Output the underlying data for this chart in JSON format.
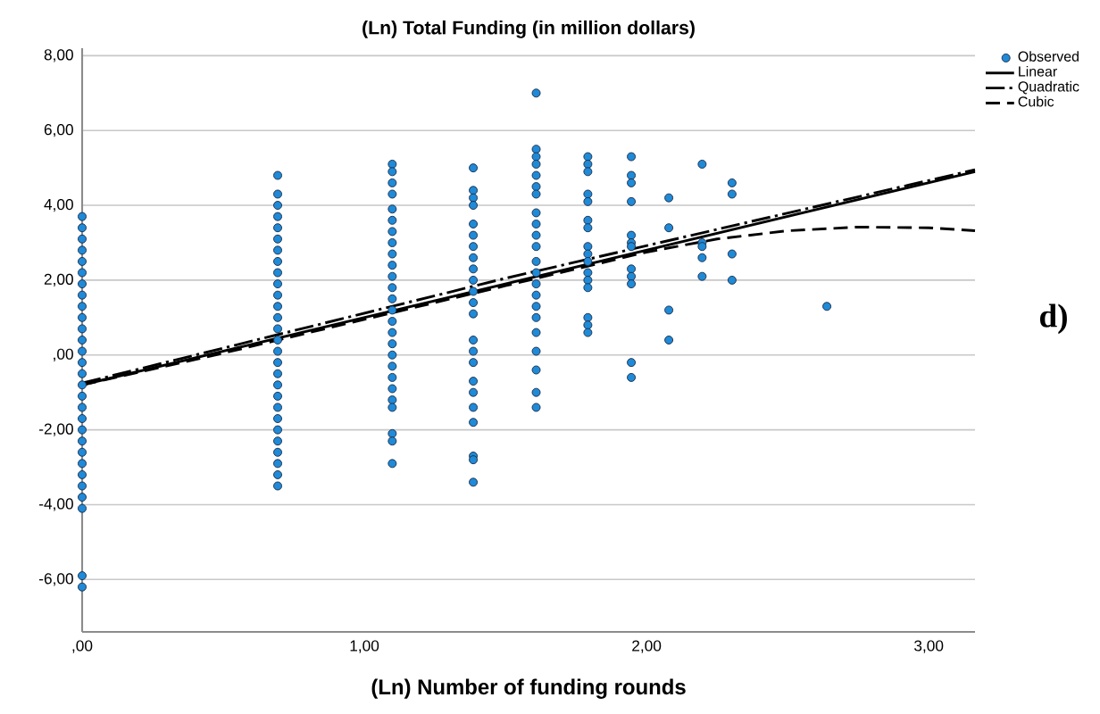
{
  "chart_data": {
    "type": "scatter",
    "title": "(Ln) Total Funding (in million dollars)",
    "xlabel": "(Ln) Number of funding rounds",
    "xlim": [
      0,
      3.164
    ],
    "ylim": [
      -7.4,
      8.2
    ],
    "xticks": [
      {
        "value": 0,
        "label": ",00"
      },
      {
        "value": 1,
        "label": "1,00"
      },
      {
        "value": 2,
        "label": "2,00"
      },
      {
        "value": 3,
        "label": "3,00"
      }
    ],
    "yticks": [
      {
        "value": -6,
        "label": "-6,00"
      },
      {
        "value": -4,
        "label": "-4,00"
      },
      {
        "value": -2,
        "label": "-2,00"
      },
      {
        "value": 0,
        "label": ",00"
      },
      {
        "value": 2,
        "label": "2,00"
      },
      {
        "value": 4,
        "label": "4,00"
      },
      {
        "value": 6,
        "label": "6,00"
      },
      {
        "value": 8,
        "label": "8,00"
      }
    ],
    "grid": "y",
    "legend": "top right",
    "annotations": [
      "d)"
    ],
    "series": [
      {
        "name": "Observed",
        "marker": "circle",
        "color": "#1f8ad8",
        "x": [
          0,
          0,
          0,
          0,
          0,
          0,
          0,
          0,
          0,
          0,
          0,
          0,
          0,
          0,
          0,
          0,
          0,
          0,
          0,
          0,
          0,
          0,
          0,
          0,
          0,
          0,
          0,
          0,
          0,
          0.693,
          0.693,
          0.693,
          0.693,
          0.693,
          0.693,
          0.693,
          0.693,
          0.693,
          0.693,
          0.693,
          0.693,
          0.693,
          0.693,
          0.693,
          0.693,
          0.693,
          0.693,
          0.693,
          0.693,
          0.693,
          0.693,
          0.693,
          0.693,
          0.693,
          0.693,
          0.693,
          0.693,
          1.099,
          1.099,
          1.099,
          1.099,
          1.099,
          1.099,
          1.099,
          1.099,
          1.099,
          1.099,
          1.099,
          1.099,
          1.099,
          1.099,
          1.099,
          1.099,
          1.099,
          1.099,
          1.099,
          1.099,
          1.099,
          1.099,
          1.099,
          1.099,
          1.099,
          1.099,
          1.386,
          1.386,
          1.386,
          1.386,
          1.386,
          1.386,
          1.386,
          1.386,
          1.386,
          1.386,
          1.386,
          1.386,
          1.386,
          1.386,
          1.386,
          1.386,
          1.386,
          1.386,
          1.386,
          1.386,
          1.386,
          1.386,
          1.386,
          1.609,
          1.609,
          1.609,
          1.609,
          1.609,
          1.609,
          1.609,
          1.609,
          1.609,
          1.609,
          1.609,
          1.609,
          1.609,
          1.609,
          1.609,
          1.609,
          1.609,
          1.609,
          1.609,
          1.609,
          1.609,
          1.609,
          1.792,
          1.792,
          1.792,
          1.792,
          1.792,
          1.792,
          1.792,
          1.792,
          1.792,
          1.792,
          1.792,
          1.792,
          1.792,
          1.792,
          1.792,
          1.792,
          1.946,
          1.946,
          1.946,
          1.946,
          1.946,
          1.946,
          1.946,
          1.946,
          1.946,
          1.946,
          1.946,
          1.946,
          2.079,
          2.079,
          2.079,
          2.079,
          2.197,
          2.197,
          2.197,
          2.197,
          2.197,
          2.303,
          2.303,
          2.303,
          2.303,
          2.639
        ],
        "values": [
          3.7,
          3.4,
          3.1,
          2.8,
          2.5,
          2.2,
          1.9,
          1.6,
          1.3,
          1.0,
          0.7,
          0.4,
          0.1,
          -0.2,
          -0.5,
          -0.8,
          -1.1,
          -1.4,
          -1.7,
          -2.0,
          -2.3,
          -2.6,
          -2.9,
          -3.2,
          -3.5,
          -3.8,
          -4.1,
          -5.9,
          -6.2,
          4.8,
          4.3,
          4.0,
          3.7,
          3.4,
          3.1,
          2.8,
          2.5,
          2.2,
          1.9,
          1.6,
          1.3,
          1.0,
          0.7,
          0.4,
          0.1,
          -0.2,
          -0.5,
          -0.8,
          -1.1,
          -1.4,
          -1.7,
          -2.0,
          -2.3,
          -2.6,
          -2.9,
          -3.2,
          -3.5,
          5.1,
          4.9,
          4.6,
          4.3,
          3.9,
          3.6,
          3.3,
          3.0,
          2.7,
          2.4,
          2.1,
          1.8,
          1.5,
          1.2,
          0.9,
          0.6,
          0.3,
          0.0,
          -0.3,
          -0.6,
          -0.9,
          -1.2,
          -1.4,
          -2.1,
          -2.3,
          -2.9,
          5.0,
          4.4,
          4.2,
          4.0,
          3.5,
          3.2,
          2.9,
          2.6,
          2.3,
          2.0,
          1.7,
          1.4,
          1.1,
          0.4,
          0.1,
          -0.2,
          -0.7,
          -1.0,
          -1.4,
          -1.8,
          -2.7,
          -2.8,
          -3.4,
          7.0,
          5.5,
          5.3,
          5.1,
          4.8,
          4.5,
          4.3,
          3.8,
          3.5,
          3.2,
          2.9,
          2.5,
          2.2,
          1.9,
          1.6,
          1.3,
          1.0,
          0.6,
          0.1,
          -0.4,
          -1.0,
          -1.4,
          5.3,
          5.1,
          4.9,
          4.3,
          4.1,
          3.6,
          3.4,
          2.9,
          2.7,
          2.5,
          2.2,
          2.0,
          1.8,
          1.0,
          0.8,
          0.6,
          5.3,
          4.8,
          4.6,
          4.1,
          3.2,
          3.0,
          2.9,
          2.3,
          2.1,
          1.9,
          -0.2,
          -0.6,
          4.2,
          3.4,
          1.2,
          0.4,
          5.1,
          3.0,
          2.9,
          2.6,
          2.1,
          4.6,
          4.3,
          2.7,
          2.0,
          1.3
        ]
      },
      {
        "name": "Linear",
        "type": "line",
        "line_style": "solid",
        "color": "#000000",
        "x": [
          0,
          3.164
        ],
        "values": [
          -0.8,
          4.9
        ]
      },
      {
        "name": "Quadratic",
        "type": "line",
        "line_style": "dashdot",
        "color": "#000000",
        "x": [
          0,
          1.5,
          3.164
        ],
        "values": [
          -0.75,
          2.05,
          4.95
        ]
      },
      {
        "name": "Cubic",
        "type": "line",
        "line_style": "dashed",
        "color": "#000000",
        "x": [
          0,
          0.5,
          1,
          1.5,
          2,
          2.25,
          2.5,
          2.75,
          3,
          3.164
        ],
        "values": [
          -0.8,
          0.05,
          0.95,
          1.85,
          2.75,
          3.1,
          3.32,
          3.42,
          3.4,
          3.32
        ]
      }
    ]
  }
}
